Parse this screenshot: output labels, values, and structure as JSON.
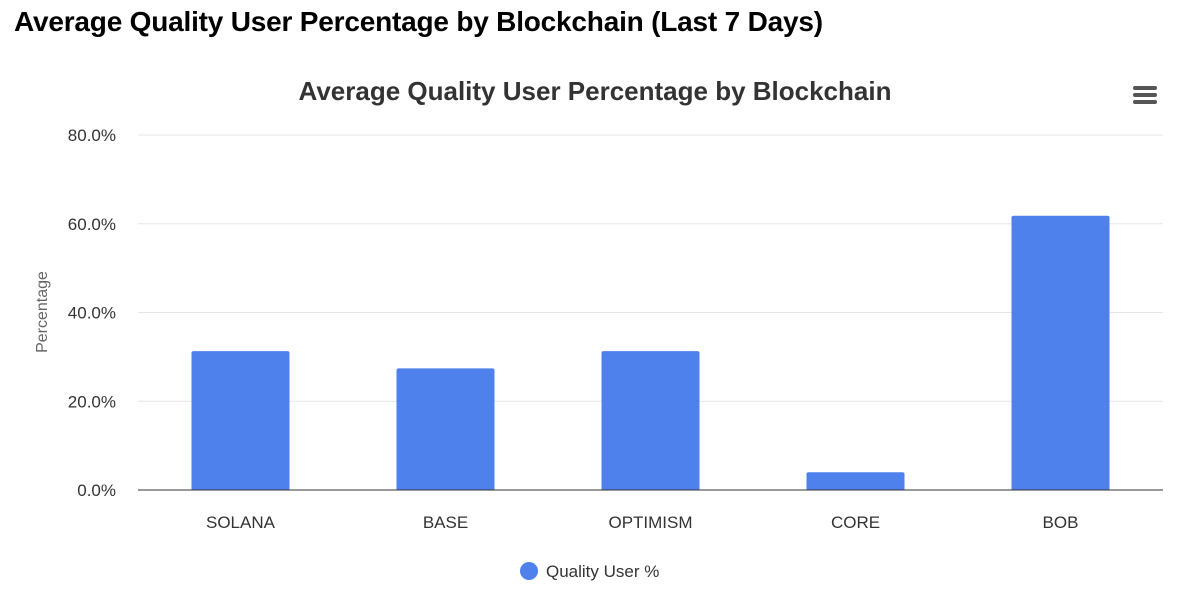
{
  "page": {
    "title": "Average Quality User Percentage by Blockchain (Last 7 Days)"
  },
  "menu": {
    "icon": "hamburger-menu-icon"
  },
  "colors": {
    "bar": "#4f81ec",
    "grid": "#e6e6e6",
    "axis": "#333333"
  },
  "chart_data": {
    "type": "bar",
    "title": "Average Quality User Percentage by Blockchain",
    "xlabel": "",
    "ylabel": "Percentage",
    "categories": [
      "SOLANA",
      "BASE",
      "OPTIMISM",
      "CORE",
      "BOB"
    ],
    "series": [
      {
        "name": "Quality User %",
        "values": [
          31.3,
          27.4,
          31.3,
          4.0,
          61.8
        ]
      }
    ],
    "ylim": [
      0,
      80
    ],
    "yticks": [
      "0.0%",
      "20.0%",
      "40.0%",
      "60.0%",
      "80.0%"
    ],
    "grid": true,
    "legend": "bottom-center"
  }
}
